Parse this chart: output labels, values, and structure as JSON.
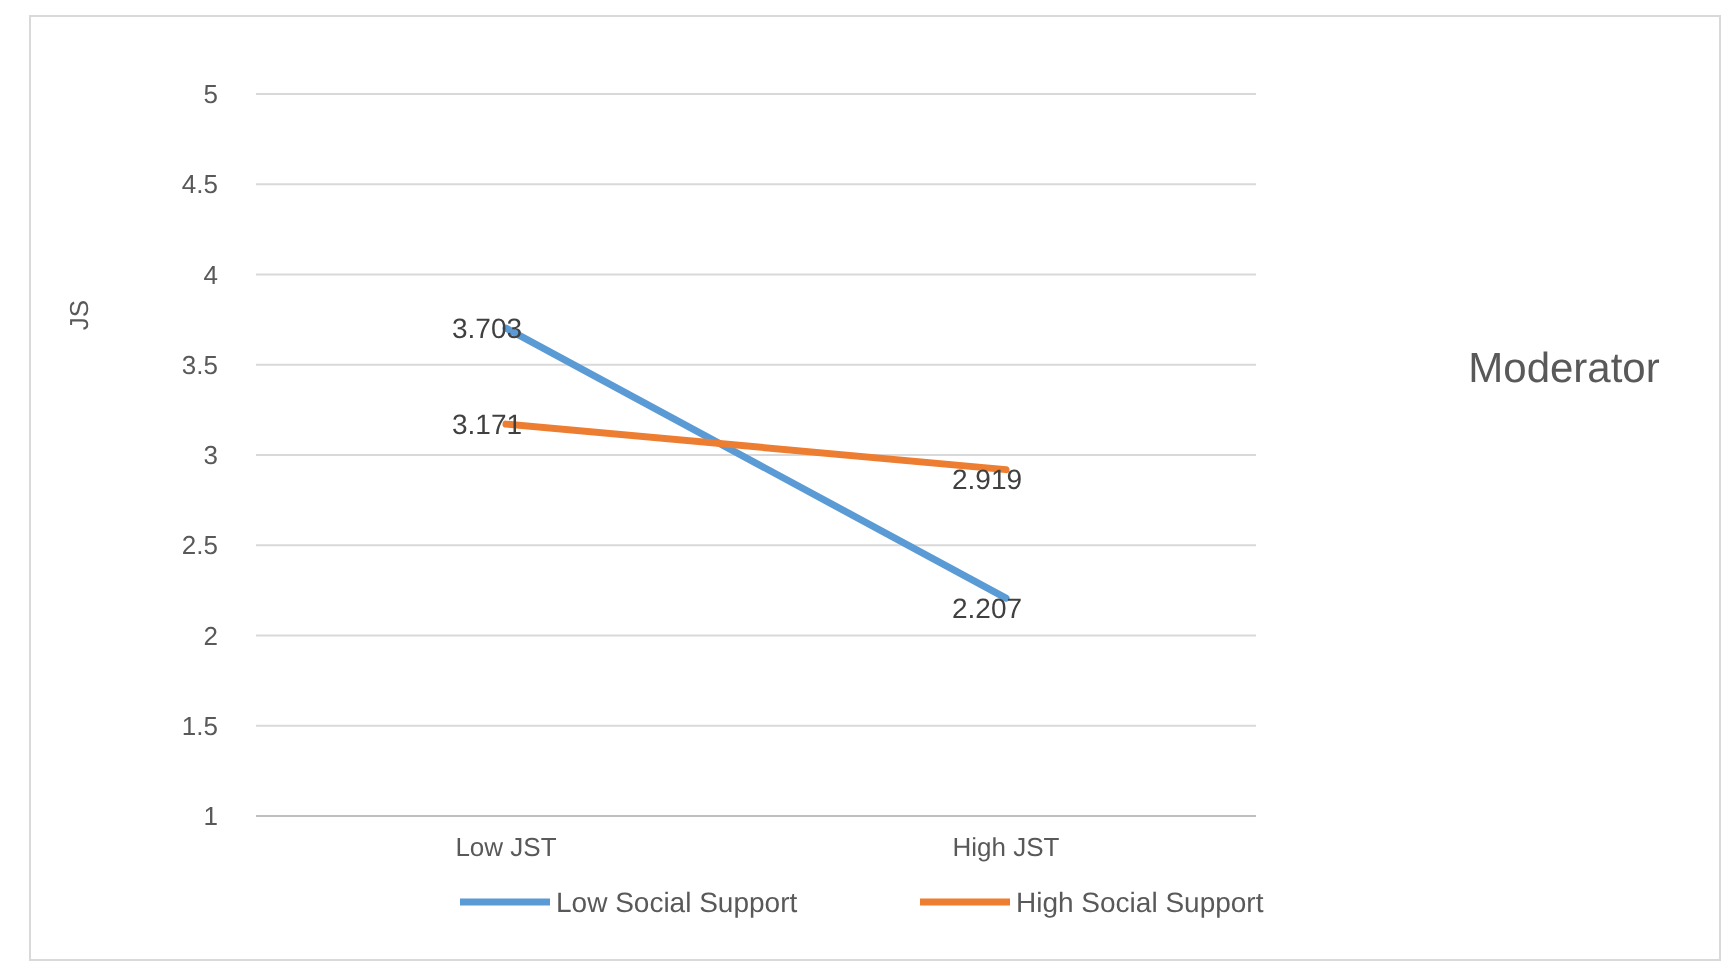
{
  "chart_data": {
    "type": "line",
    "title": "Moderator",
    "ylabel": "JS",
    "categories": [
      "Low JST",
      "High JST"
    ],
    "series": [
      {
        "name": "Low Social Support",
        "color": "#5b9bd5",
        "values": [
          3.703,
          2.207
        ]
      },
      {
        "name": "High Social Support",
        "color": "#ed7d31",
        "values": [
          3.171,
          2.919
        ]
      }
    ],
    "ylim": [
      1,
      5
    ],
    "yticks": [
      1,
      1.5,
      2,
      2.5,
      3,
      3.5,
      4,
      4.5,
      5
    ],
    "grid": "y",
    "legend": "bottom",
    "data_labels": true,
    "marker": "none",
    "line_style": "solid"
  }
}
